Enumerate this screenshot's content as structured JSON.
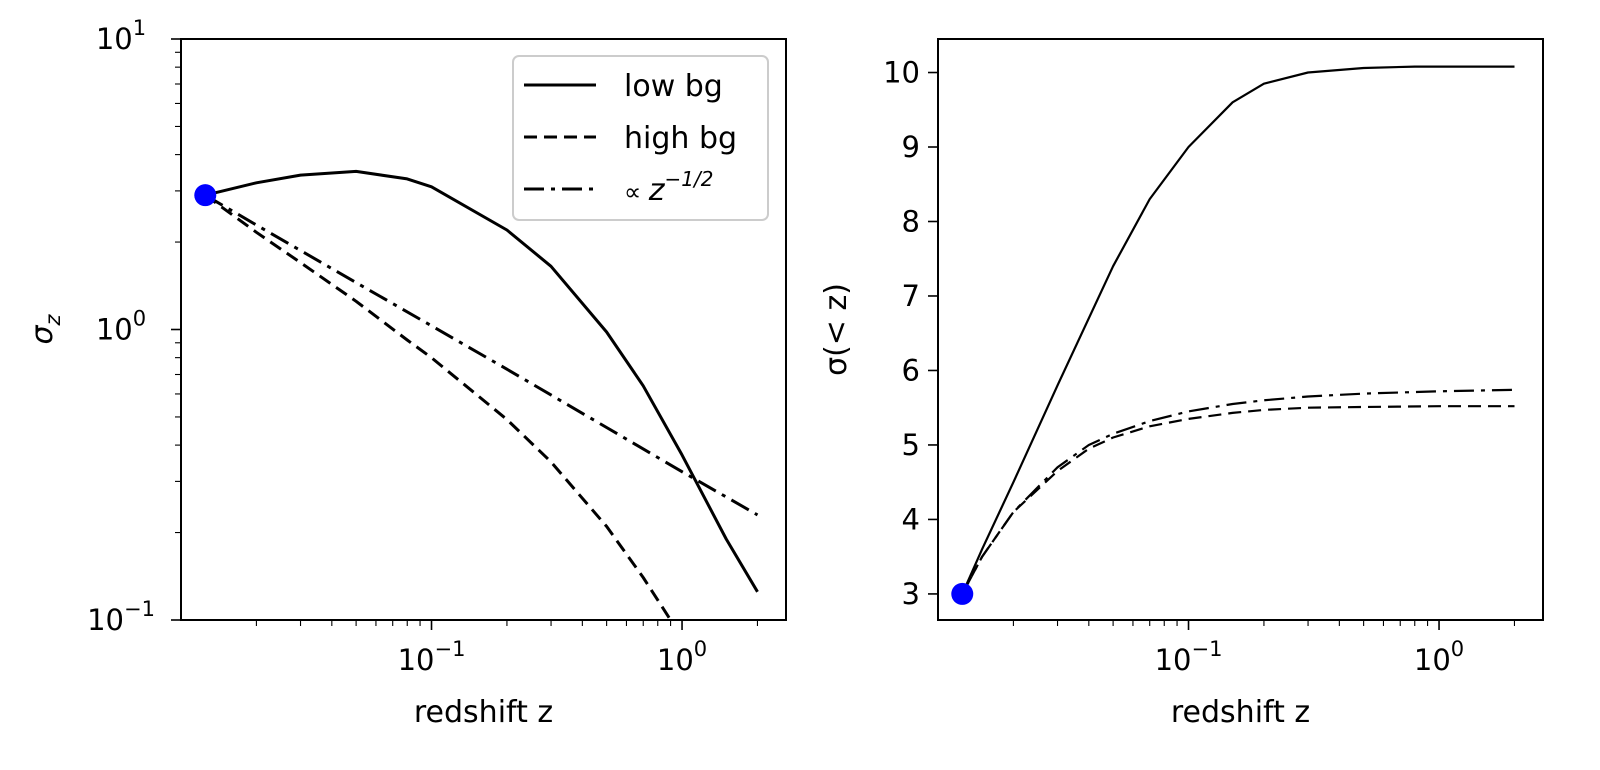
{
  "colors": {
    "line": "#000000",
    "marker": "#0000ff"
  },
  "chart_data": [
    {
      "type": "line",
      "xscale": "log",
      "yscale": "log",
      "xlim": [
        0.01,
        2.6
      ],
      "ylim": [
        0.1,
        10
      ],
      "xlabel": "redshift z",
      "ylabel": "σ",
      "ylabel_sub": "z",
      "x_ticks": [
        {
          "value": 0.1,
          "base": "10",
          "exp": "−1"
        },
        {
          "value": 1,
          "base": "10",
          "exp": "0"
        }
      ],
      "y_ticks": [
        {
          "value": 0.1,
          "base": "10",
          "exp": "−1"
        },
        {
          "value": 1,
          "base": "10",
          "exp": "0"
        },
        {
          "value": 10,
          "base": "10",
          "exp": "1"
        }
      ],
      "legend": {
        "position": "top-right",
        "entries": [
          {
            "label": "low bg",
            "style": "solid"
          },
          {
            "label": "high bg",
            "style": "dashed"
          },
          {
            "label_prefix": "∝ ",
            "label_var": "z",
            "label_exp": "−1/2",
            "style": "dashdot"
          }
        ]
      },
      "series": [
        {
          "name": "low bg",
          "style": "solid",
          "x": [
            0.0125,
            0.02,
            0.03,
            0.05,
            0.08,
            0.1,
            0.2,
            0.3,
            0.5,
            0.7,
            1.0,
            1.5,
            2.0
          ],
          "y": [
            2.9,
            3.2,
            3.4,
            3.5,
            3.3,
            3.1,
            2.2,
            1.65,
            0.98,
            0.64,
            0.37,
            0.19,
            0.125
          ]
        },
        {
          "name": "high bg",
          "style": "dashed",
          "x": [
            0.0125,
            0.02,
            0.03,
            0.05,
            0.08,
            0.1,
            0.2,
            0.3,
            0.5,
            0.7,
            0.9
          ],
          "y": [
            2.9,
            2.16,
            1.7,
            1.25,
            0.92,
            0.8,
            0.49,
            0.35,
            0.21,
            0.14,
            0.1
          ]
        },
        {
          "name": "∝ z^-1/2",
          "style": "dashdot",
          "x": [
            0.0125,
            0.02,
            0.05,
            0.1,
            0.2,
            0.5,
            1.0,
            2.0
          ],
          "y": [
            2.9,
            2.29,
            1.45,
            1.03,
            0.73,
            0.46,
            0.324,
            0.23
          ]
        }
      ],
      "marker": {
        "x": 0.0125,
        "y": 2.9
      }
    },
    {
      "type": "line",
      "xscale": "log",
      "yscale": "linear",
      "xlim": [
        0.01,
        2.6
      ],
      "ylim": [
        2.65,
        10.45
      ],
      "xlabel": "redshift z",
      "ylabel": "σ(< z)",
      "x_ticks": [
        {
          "value": 0.1,
          "base": "10",
          "exp": "−1"
        },
        {
          "value": 1,
          "base": "10",
          "exp": "0"
        }
      ],
      "y_ticks": [
        {
          "value": 3,
          "label": "3"
        },
        {
          "value": 4,
          "label": "4"
        },
        {
          "value": 5,
          "label": "5"
        },
        {
          "value": 6,
          "label": "6"
        },
        {
          "value": 7,
          "label": "7"
        },
        {
          "value": 8,
          "label": "8"
        },
        {
          "value": 9,
          "label": "9"
        },
        {
          "value": 10,
          "label": "10"
        }
      ],
      "series": [
        {
          "name": "low bg",
          "style": "solid",
          "x": [
            0.0125,
            0.015,
            0.02,
            0.03,
            0.05,
            0.07,
            0.1,
            0.15,
            0.2,
            0.3,
            0.5,
            0.8,
            1.0,
            2.0
          ],
          "y": [
            3.0,
            3.6,
            4.5,
            5.8,
            7.4,
            8.3,
            9.0,
            9.6,
            9.85,
            10.0,
            10.06,
            10.08,
            10.08,
            10.08
          ]
        },
        {
          "name": "high bg",
          "style": "dashed",
          "x": [
            0.0125,
            0.015,
            0.02,
            0.03,
            0.04,
            0.05,
            0.07,
            0.1,
            0.15,
            0.2,
            0.3,
            0.5,
            1.0,
            2.0
          ],
          "y": [
            3.0,
            3.5,
            4.1,
            4.65,
            4.95,
            5.1,
            5.25,
            5.35,
            5.43,
            5.47,
            5.5,
            5.51,
            5.52,
            5.52
          ]
        },
        {
          "name": "∝ z^-1/2",
          "style": "dashdot",
          "x": [
            0.0125,
            0.015,
            0.02,
            0.03,
            0.04,
            0.05,
            0.07,
            0.1,
            0.15,
            0.2,
            0.3,
            0.5,
            1.0,
            2.0
          ],
          "y": [
            3.0,
            3.5,
            4.1,
            4.7,
            5.0,
            5.15,
            5.32,
            5.45,
            5.55,
            5.6,
            5.65,
            5.69,
            5.72,
            5.74
          ]
        }
      ],
      "marker": {
        "x": 0.0125,
        "y": 3.0
      }
    }
  ]
}
